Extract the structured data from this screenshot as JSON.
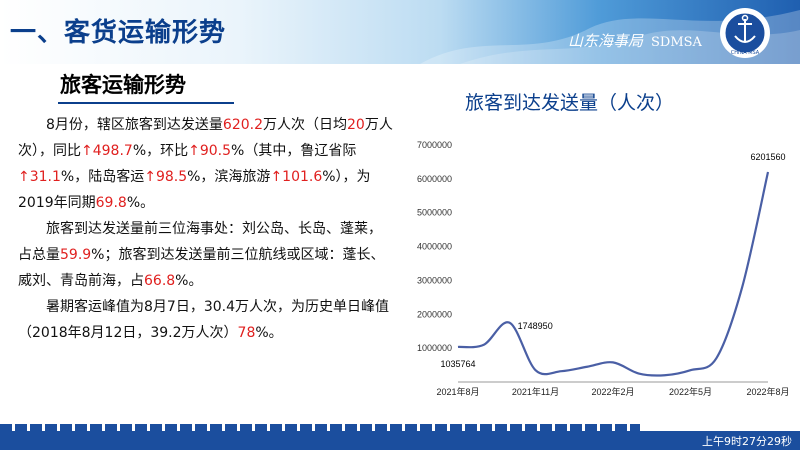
{
  "header": {
    "title": "一、客货运输形势",
    "brand_cn": "山东海事局",
    "brand_en": "SDMSA",
    "logo_text": "CHINA MSA"
  },
  "section": {
    "subtitle": "旅客运输形势"
  },
  "para1": {
    "a": "8月份，辖区旅客到达发送量",
    "v1": "620.2",
    "b": "万人次（日均",
    "v2": "20",
    "c": "万人次），同比",
    "v3": "↑498.7",
    "d": "%，环比",
    "v4": "↑90.5",
    "e": "%（其中，鲁辽省际",
    "v5": "↑31.1",
    "f": "%，陆岛客运",
    "v6": "↑98.5",
    "g": "%，滨海旅游",
    "v7": "↑101.6",
    "h": "%），为2019年同期",
    "v8": "69.8",
    "i": "%。"
  },
  "para2": {
    "a": "旅客到达发送量前三位海事处：刘公岛、长岛、蓬莱，占总量",
    "v1": "59.9",
    "b": "%；旅客到达发送量前三位航线或区域：蓬长、威刘、青岛前海，占",
    "v2": "66.8",
    "c": "%。"
  },
  "para3": {
    "a": "暑期客运峰值为8月7日，30.4万人次，为历史单日峰值（2018年8月12日，39.2万人次）",
    "v1": "78",
    "b": "%。"
  },
  "chart_data": {
    "type": "line",
    "title": "旅客到达发送量（人次）",
    "x_ticks": [
      "2021年8月",
      "2021年11月",
      "2022年2月",
      "2022年5月",
      "2022年8月"
    ],
    "y_ticks": [
      "1000000",
      "2000000",
      "3000000",
      "4000000",
      "5000000",
      "6000000",
      "7000000"
    ],
    "ylim": [
      0,
      7000000
    ],
    "series": [
      {
        "x": [
          "2021-08",
          "2021-09",
          "2021-10",
          "2021-11",
          "2021-12",
          "2022-01",
          "2022-02",
          "2022-03",
          "2022-04",
          "2022-05",
          "2022-06",
          "2022-07",
          "2022-08"
        ],
        "values": [
          1035764,
          1100000,
          1748950,
          350000,
          320000,
          450000,
          580000,
          250000,
          200000,
          350000,
          700000,
          2800000,
          6201560
        ]
      }
    ],
    "data_labels": [
      {
        "index": 0,
        "text": "1035764"
      },
      {
        "index": 2,
        "text": "1748950"
      },
      {
        "index": 12,
        "text": "6201560"
      }
    ],
    "line_color": "#4a5fa5"
  },
  "footer": {
    "time": "上午9时27分29秒"
  }
}
